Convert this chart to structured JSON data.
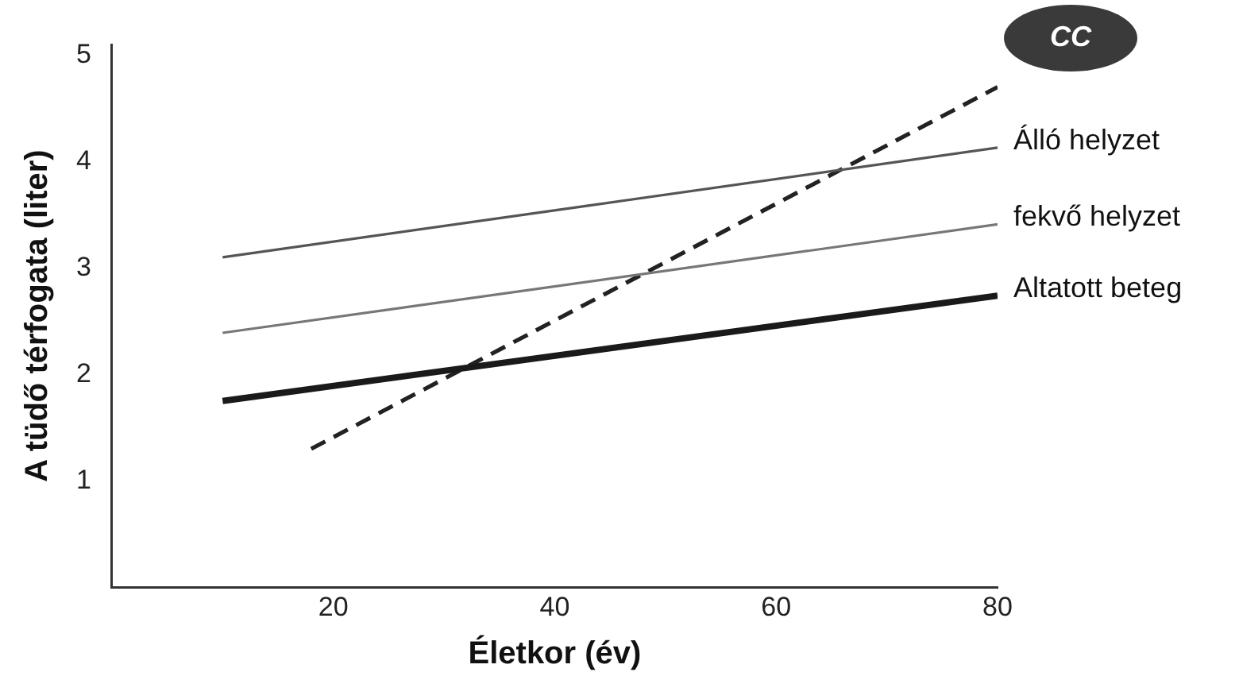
{
  "chart_data": {
    "type": "line",
    "xlabel": "Életkor (év)",
    "ylabel": "A tüdő térfogata (liter)",
    "xlim": [
      0,
      80
    ],
    "xticks": [
      20,
      40,
      60,
      80
    ],
    "ylim": [
      0,
      5.1
    ],
    "yticks": [
      1,
      2,
      3,
      4,
      5
    ],
    "grid": false,
    "legend": false,
    "marker": "none",
    "series": [
      {
        "name": "Álló helyzet",
        "color": "#555555",
        "x": [
          10,
          80
        ],
        "values": [
          3.1,
          4.13
        ]
      },
      {
        "name": "fekvő helyzet",
        "color": "#777777",
        "x": [
          10,
          80
        ],
        "values": [
          2.39,
          3.41
        ]
      },
      {
        "name": "Altatott beteg",
        "color": "#1a1a1a",
        "x": [
          10,
          80
        ],
        "values": [
          1.75,
          2.74
        ]
      },
      {
        "name": "CC",
        "color": "#222222",
        "line_style": "dashed",
        "x": [
          18,
          80
        ],
        "values": [
          1.3,
          4.7
        ]
      }
    ]
  }
}
